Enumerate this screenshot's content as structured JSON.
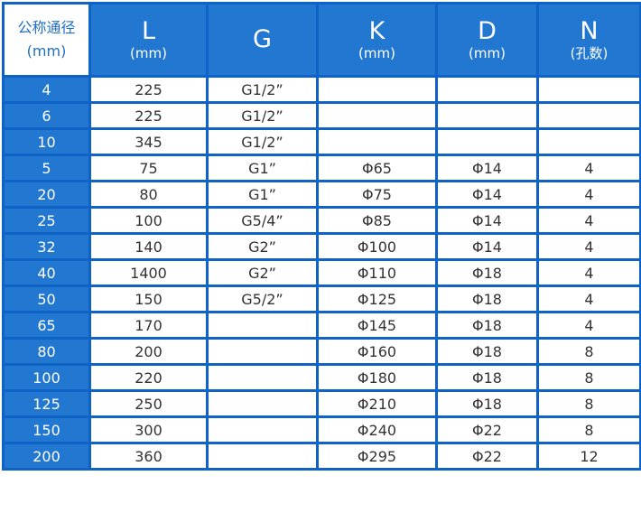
{
  "header": {
    "first": [
      "公称通径",
      "(mm)"
    ],
    "cols": [
      {
        "label": "L",
        "unit": "(mm)"
      },
      {
        "label": "G",
        "unit": ""
      },
      {
        "label": "K",
        "unit": "(mm)"
      },
      {
        "label": "D",
        "unit": "(mm)"
      },
      {
        "label": "N",
        "unit": "(孔数)"
      }
    ]
  },
  "rows": [
    [
      "4",
      "225",
      "G1/2”",
      "",
      "",
      ""
    ],
    [
      "6",
      "225",
      "G1/2”",
      "",
      "",
      ""
    ],
    [
      "10",
      "345",
      "G1/2”",
      "",
      "",
      ""
    ],
    [
      "5",
      "75",
      "G1”",
      "Φ65",
      "Φ14",
      "4"
    ],
    [
      "20",
      "80",
      "G1”",
      "Φ75",
      "Φ14",
      "4"
    ],
    [
      "25",
      "100",
      "G5/4”",
      "Φ85",
      "Φ14",
      "4"
    ],
    [
      "32",
      "140",
      "G2”",
      "Φ100",
      "Φ14",
      "4"
    ],
    [
      "40",
      "1400",
      "G2”",
      "Φ110",
      "Φ18",
      "4"
    ],
    [
      "50",
      "150",
      "G5/2”",
      "Φ125",
      "Φ18",
      "4"
    ],
    [
      "65",
      "170",
      "",
      "Φ145",
      "Φ18",
      "4"
    ],
    [
      "80",
      "200",
      "",
      "Φ160",
      "Φ18",
      "8"
    ],
    [
      "100",
      "220",
      "",
      "Φ180",
      "Φ18",
      "8"
    ],
    [
      "125",
      "250",
      "",
      "Φ210",
      "Φ18",
      "8"
    ],
    [
      "150",
      "300",
      "",
      "Φ240",
      "Φ22",
      "8"
    ],
    [
      "200",
      "360",
      "",
      "Φ295",
      "Φ22",
      "12"
    ]
  ]
}
